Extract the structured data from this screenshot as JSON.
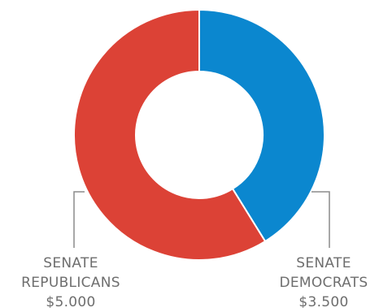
{
  "chart_data": {
    "type": "pie",
    "variant": "donut",
    "title": "",
    "slices": [
      {
        "label_lines": [
          "SENATE",
          "DEMOCRATS"
        ],
        "value_label": "$3.500",
        "value": 3500,
        "color": "#0b87cf"
      },
      {
        "label_lines": [
          "SENATE",
          "REPUBLICANS"
        ],
        "value_label": "$5.000",
        "value": 5000,
        "color": "#dc4236"
      }
    ],
    "legend": "none",
    "leader_color": "#8c8c8c"
  }
}
